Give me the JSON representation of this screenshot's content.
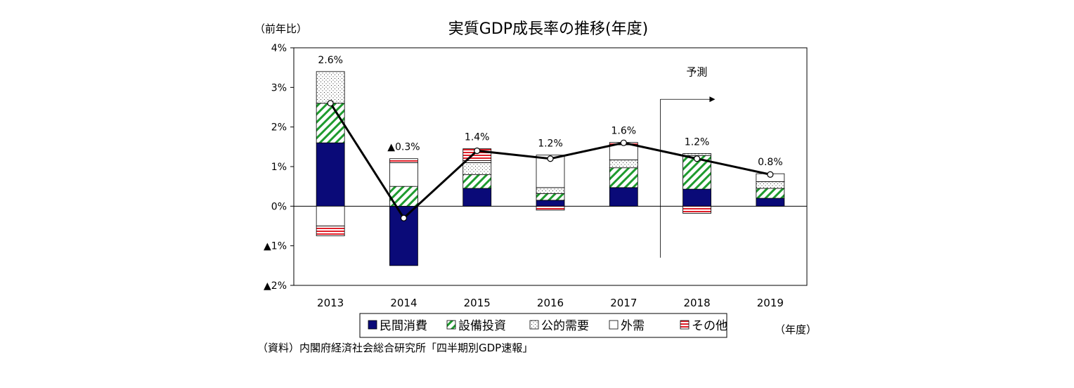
{
  "chart_data": {
    "type": "bar",
    "title": "実質GDP成長率の推移(年度)",
    "ylabel": "（前年比）",
    "xlabel": "（年度）",
    "source": "（資料）内閣府経済社会総合研究所「四半期別GDP速報」",
    "forecast_label": "予測",
    "ylim": [
      -2,
      4
    ],
    "y_ticks": [
      {
        "value": 4,
        "label": "4%"
      },
      {
        "value": 3,
        "label": "3%"
      },
      {
        "value": 2,
        "label": "2%"
      },
      {
        "value": 1,
        "label": "1%"
      },
      {
        "value": 0,
        "label": "0%"
      },
      {
        "value": -1,
        "label": "▲1%"
      },
      {
        "value": -2,
        "label": "▲2%"
      }
    ],
    "categories": [
      "2013",
      "2014",
      "2015",
      "2016",
      "2017",
      "2018",
      "2019"
    ],
    "series": [
      {
        "name": "民間消費",
        "type": "stacked-bar",
        "pattern": "solid",
        "color": "#0a0a78",
        "values": [
          1.6,
          -1.5,
          0.45,
          0.15,
          0.47,
          0.43,
          0.2
        ]
      },
      {
        "name": "設備投資",
        "type": "stacked-bar",
        "pattern": "hatch",
        "color": "#1e9b2e",
        "values": [
          1.0,
          0.5,
          0.35,
          0.17,
          0.5,
          0.85,
          0.25
        ]
      },
      {
        "name": "公的需要",
        "type": "stacked-bar",
        "pattern": "dots",
        "color": "#333333",
        "values": [
          0.8,
          0.0,
          0.3,
          0.15,
          0.2,
          0.05,
          0.17
        ]
      },
      {
        "name": "外需",
        "type": "stacked-bar",
        "pattern": "white",
        "color": "#000000",
        "values": [
          -0.5,
          0.6,
          0.05,
          0.82,
          0.38,
          0.0,
          0.2
        ]
      },
      {
        "name": "その他",
        "type": "stacked-bar",
        "pattern": "redlines",
        "color": "#e0202a",
        "values": [
          -0.25,
          0.1,
          0.3,
          -0.1,
          0.06,
          -0.18,
          0.0
        ]
      },
      {
        "name": "実質GDP",
        "type": "line",
        "values": [
          2.6,
          -0.3,
          1.4,
          1.2,
          1.6,
          1.2,
          0.8
        ],
        "labels": [
          "2.6%",
          "▲0.3%",
          "1.4%",
          "1.2%",
          "1.6%",
          "1.2%",
          "0.8%"
        ]
      }
    ],
    "legend": {
      "position": "bottom"
    }
  }
}
